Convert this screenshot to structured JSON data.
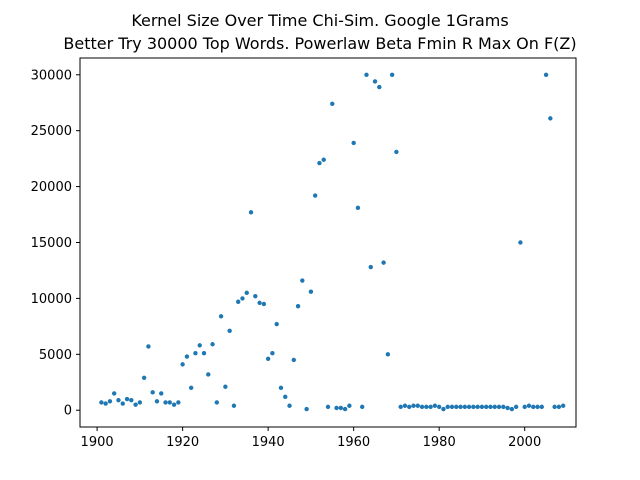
{
  "chart_data": {
    "type": "scatter",
    "title_lines": [
      "Kernel Size Over Time Chi-Sim. Google 1Grams",
      "Better Try 30000 Top Words. Powerlaw Beta Fmin R Max On F(Z)"
    ],
    "xlabel": "",
    "ylabel": "",
    "xlim": [
      1896,
      2012
    ],
    "ylim": [
      -1500,
      31500
    ],
    "x_ticks": [
      1900,
      1920,
      1940,
      1960,
      1980,
      2000
    ],
    "y_ticks": [
      0,
      5000,
      10000,
      15000,
      20000,
      25000,
      30000
    ],
    "grid": false,
    "point_color": "#1f77b4",
    "points": [
      [
        1901,
        700
      ],
      [
        1902,
        600
      ],
      [
        1903,
        800
      ],
      [
        1904,
        1500
      ],
      [
        1905,
        900
      ],
      [
        1906,
        600
      ],
      [
        1907,
        1000
      ],
      [
        1908,
        900
      ],
      [
        1909,
        500
      ],
      [
        1910,
        700
      ],
      [
        1911,
        2900
      ],
      [
        1912,
        5700
      ],
      [
        1913,
        1600
      ],
      [
        1914,
        800
      ],
      [
        1915,
        1500
      ],
      [
        1916,
        700
      ],
      [
        1917,
        700
      ],
      [
        1918,
        500
      ],
      [
        1919,
        700
      ],
      [
        1920,
        4100
      ],
      [
        1921,
        4800
      ],
      [
        1922,
        2000
      ],
      [
        1923,
        5100
      ],
      [
        1924,
        5800
      ],
      [
        1925,
        5100
      ],
      [
        1926,
        3200
      ],
      [
        1927,
        5900
      ],
      [
        1928,
        700
      ],
      [
        1929,
        8400
      ],
      [
        1930,
        2100
      ],
      [
        1931,
        7100
      ],
      [
        1932,
        400
      ],
      [
        1933,
        9700
      ],
      [
        1934,
        10000
      ],
      [
        1935,
        10500
      ],
      [
        1936,
        17700
      ],
      [
        1937,
        10200
      ],
      [
        1938,
        9600
      ],
      [
        1939,
        9500
      ],
      [
        1940,
        4600
      ],
      [
        1941,
        5100
      ],
      [
        1942,
        7700
      ],
      [
        1943,
        2000
      ],
      [
        1944,
        1200
      ],
      [
        1945,
        400
      ],
      [
        1946,
        4500
      ],
      [
        1947,
        9300
      ],
      [
        1948,
        11600
      ],
      [
        1949,
        100
      ],
      [
        1950,
        10600
      ],
      [
        1951,
        19200
      ],
      [
        1952,
        22100
      ],
      [
        1953,
        22400
      ],
      [
        1954,
        300
      ],
      [
        1955,
        27400
      ],
      [
        1956,
        200
      ],
      [
        1957,
        200
      ],
      [
        1958,
        100
      ],
      [
        1959,
        400
      ],
      [
        1960,
        23900
      ],
      [
        1961,
        18100
      ],
      [
        1962,
        300
      ],
      [
        1963,
        30000
      ],
      [
        1964,
        12800
      ],
      [
        1965,
        29400
      ],
      [
        1966,
        28900
      ],
      [
        1967,
        13200
      ],
      [
        1968,
        5000
      ],
      [
        1969,
        30000
      ],
      [
        1970,
        23100
      ],
      [
        1971,
        300
      ],
      [
        1972,
        400
      ],
      [
        1973,
        300
      ],
      [
        1974,
        400
      ],
      [
        1975,
        400
      ],
      [
        1976,
        300
      ],
      [
        1977,
        300
      ],
      [
        1978,
        300
      ],
      [
        1979,
        400
      ],
      [
        1980,
        300
      ],
      [
        1981,
        100
      ],
      [
        1982,
        300
      ],
      [
        1983,
        300
      ],
      [
        1984,
        300
      ],
      [
        1985,
        300
      ],
      [
        1986,
        300
      ],
      [
        1987,
        300
      ],
      [
        1988,
        300
      ],
      [
        1989,
        300
      ],
      [
        1990,
        300
      ],
      [
        1991,
        300
      ],
      [
        1992,
        300
      ],
      [
        1993,
        300
      ],
      [
        1994,
        300
      ],
      [
        1995,
        300
      ],
      [
        1996,
        200
      ],
      [
        1997,
        100
      ],
      [
        1998,
        300
      ],
      [
        1999,
        15000
      ],
      [
        2000,
        300
      ],
      [
        2001,
        400
      ],
      [
        2002,
        300
      ],
      [
        2003,
        300
      ],
      [
        2004,
        300
      ],
      [
        2005,
        30000
      ],
      [
        2006,
        26100
      ],
      [
        2007,
        300
      ],
      [
        2008,
        300
      ],
      [
        2009,
        400
      ]
    ]
  }
}
